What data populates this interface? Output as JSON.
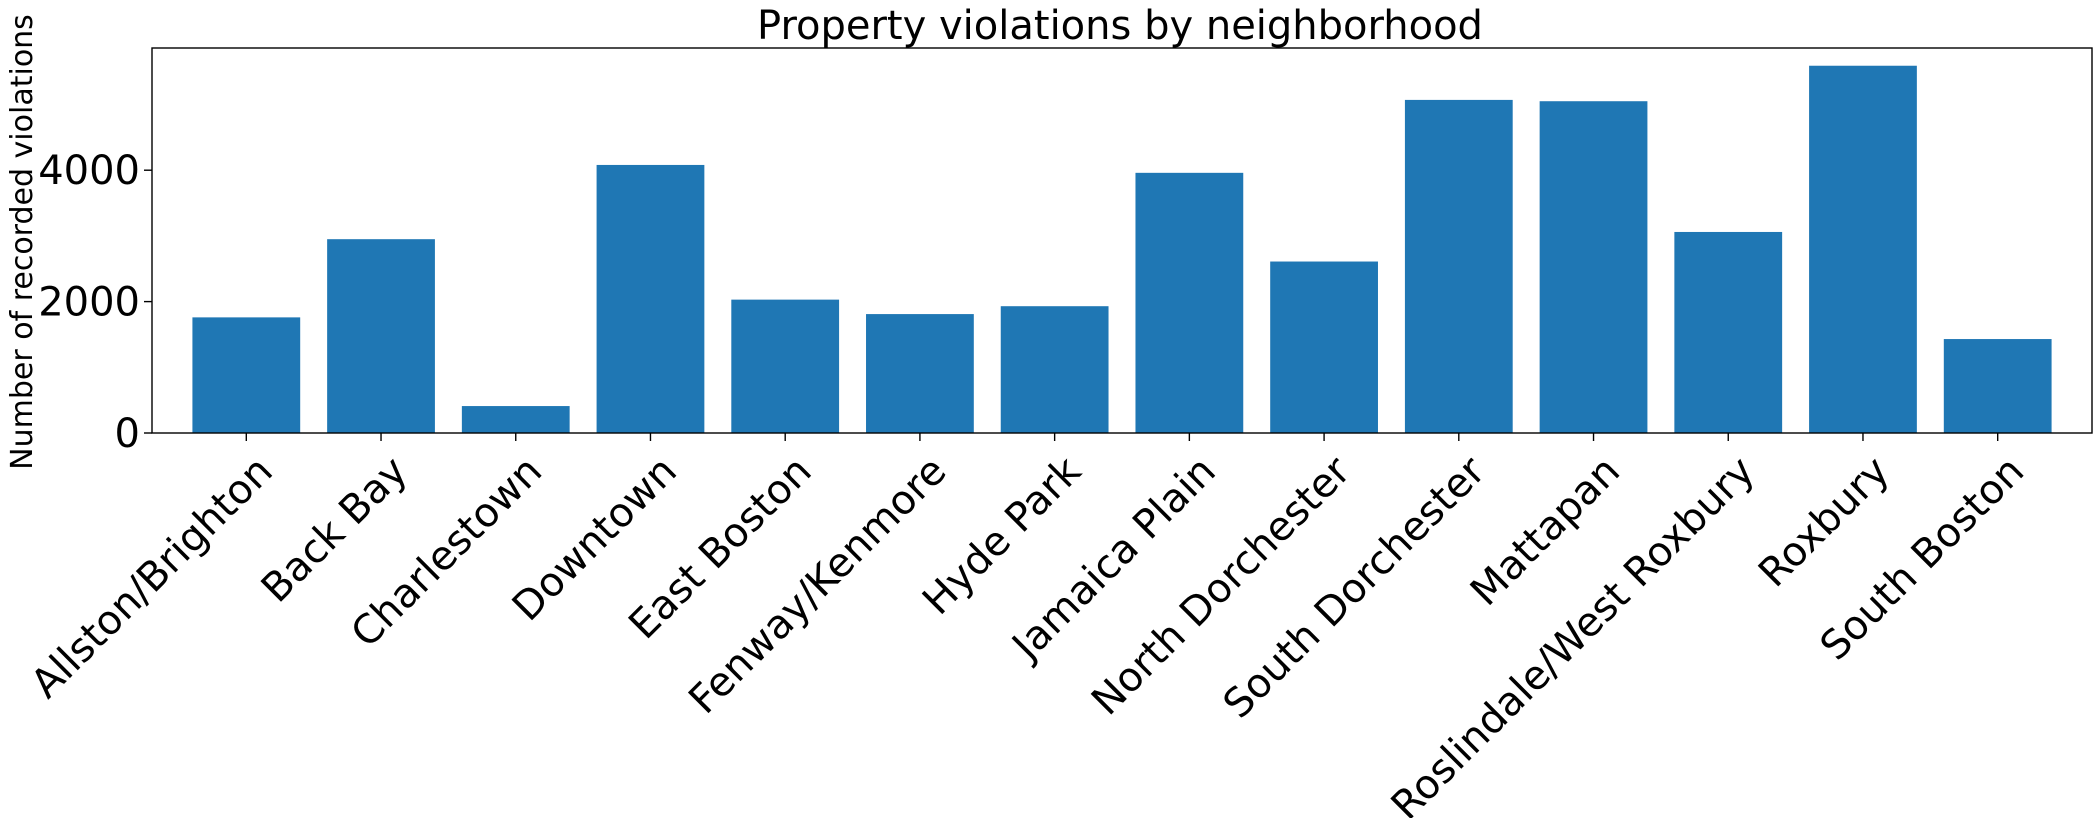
{
  "chart_data": {
    "type": "bar",
    "title": "Property violations by neighborhood",
    "xlabel": "",
    "ylabel": "Number of recorded violations",
    "categories": [
      "Allston/Brighton",
      "Back Bay",
      "Charlestown",
      "Downtown",
      "East Boston",
      "Fenway/Kenmore",
      "Hyde Park",
      "Jamaica Plain",
      "North Dorchester",
      "South Dorchester",
      "Mattapan",
      "Roslindale/West Roxbury",
      "Roxbury",
      "South Boston"
    ],
    "values": [
      1760,
      2950,
      410,
      4080,
      2030,
      1810,
      1930,
      3960,
      2610,
      5070,
      5050,
      3060,
      5590,
      1430
    ],
    "ylim": [
      0,
      5860
    ],
    "yticks": [
      0,
      2000,
      4000
    ],
    "ytick_labels": [
      "0",
      "2000",
      "4000"
    ],
    "bar_color": "#1f77b4",
    "grid": false,
    "legend": "none"
  }
}
